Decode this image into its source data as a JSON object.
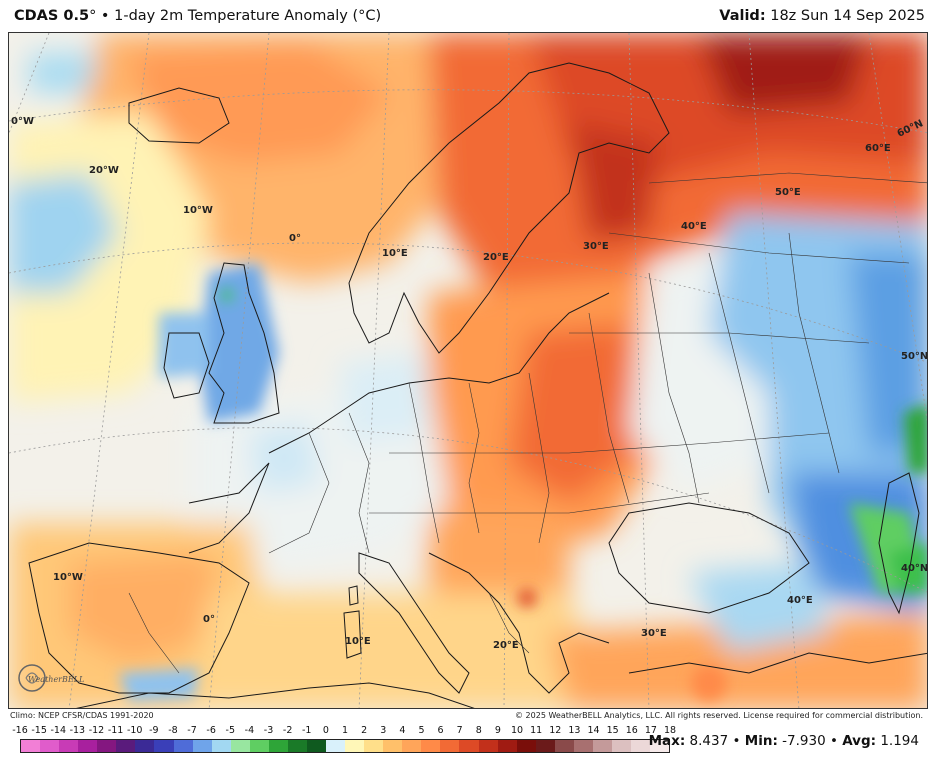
{
  "header": {
    "product": "CDAS 0.5",
    "degree": "°",
    "separator": " • ",
    "description": "1-day 2m Temperature Anomaly (°C)",
    "valid_label": "Valid:",
    "valid_time": " 18z Sun 14 Sep 2025"
  },
  "map": {
    "type": "temperature anomaly map",
    "region": "Europe",
    "graticule_labels": [
      {
        "text": "0°W"
      },
      {
        "text": "20°W"
      },
      {
        "text": "10°W"
      },
      {
        "text": "0°"
      },
      {
        "text": "10°E"
      },
      {
        "text": "20°E"
      },
      {
        "text": "30°E"
      },
      {
        "text": "40°E"
      },
      {
        "text": "50°E"
      },
      {
        "text": "60°E"
      },
      {
        "text": "60°N"
      },
      {
        "text": "50°N"
      },
      {
        "text": "40°N"
      },
      {
        "text": "10°W"
      },
      {
        "text": "0°"
      },
      {
        "text": "10°E"
      },
      {
        "text": "20°E"
      },
      {
        "text": "30°E"
      },
      {
        "text": "40°E"
      }
    ]
  },
  "footer": {
    "climo": "Climo: NCEP CFSR/CDAS 1991-2020",
    "copyright": "© 2025 WeatherBELL Analytics, LLC. All rights reserved. License required for commercial distribution."
  },
  "legend": {
    "labels": [
      "-16",
      "-15",
      "-14",
      "-13",
      "-12",
      "-11",
      "-10",
      "-9",
      "-8",
      "-7",
      "-6",
      "-5",
      "-4",
      "-3",
      "-2",
      "-1",
      "0",
      "1",
      "2",
      "3",
      "4",
      "5",
      "6",
      "7",
      "8",
      "9",
      "10",
      "11",
      "12",
      "13",
      "14",
      "15",
      "16",
      "17",
      "18"
    ],
    "colors": [
      "#f27fd6",
      "#e05ccb",
      "#c83bb6",
      "#a8209e",
      "#841780",
      "#5a1b7c",
      "#3b2a96",
      "#3a3fb8",
      "#4f6cd8",
      "#6fa4ea",
      "#a2d8f2",
      "#98e6a0",
      "#5fce62",
      "#2ea538",
      "#1a7a28",
      "#0f5a1f",
      "#d9f1fb",
      "#fff7b8",
      "#ffdf8a",
      "#ffc06a",
      "#ffa55a",
      "#ff8a48",
      "#f26a35",
      "#dd4a26",
      "#c2301b",
      "#a01b12",
      "#7a0e0a",
      "#6b1a1a",
      "#8a4a4a",
      "#a87070",
      "#c49a9a",
      "#dcc0c0",
      "#ecd8d8",
      "#f6eaea"
    ]
  },
  "stats": {
    "max_label": "Max:",
    "max_value": " 8.437",
    "min_label": "Min:",
    "min_value": " -7.930",
    "avg_label": "Avg:",
    "avg_value": " 1.194",
    "sep": " • "
  },
  "logo": {
    "text": "WeatherBELL"
  }
}
